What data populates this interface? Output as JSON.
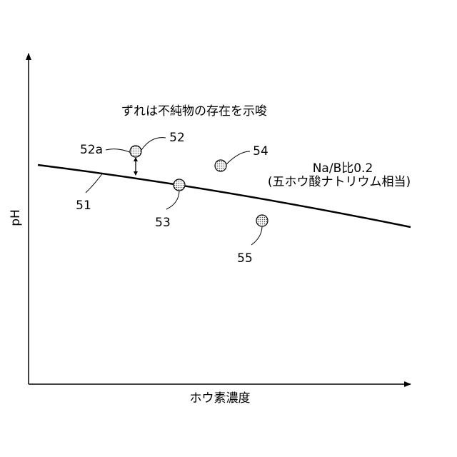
{
  "annotation": "ずれは不純物の存在を示唆",
  "curve": {
    "label": "51",
    "note": [
      "Na/B比0.2",
      "(五ホウ酸ナトリウム相当)"
    ]
  },
  "points": [
    {
      "label": "52"
    },
    {
      "label": "53"
    },
    {
      "label": "54"
    },
    {
      "label": "55"
    }
  ],
  "deviation_label": "52a",
  "axes": {
    "y": "pH",
    "x": "ホウ素濃度"
  }
}
